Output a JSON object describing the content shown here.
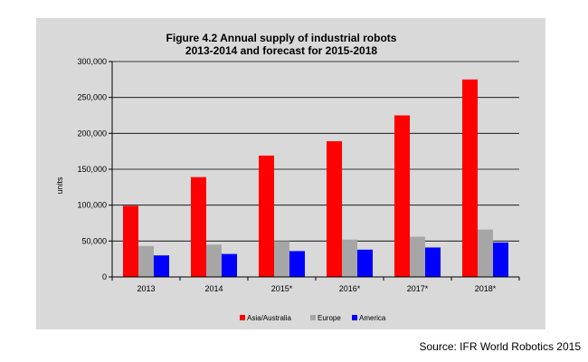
{
  "source_note": "Source: IFR World Robotics 2015",
  "chart_data": {
    "type": "bar",
    "title": [
      "Figure 4.2 Annual supply of industrial robots",
      "2013-2014 and forecast for 2015-2018"
    ],
    "xlabel": "",
    "ylabel": "units",
    "ylim": [
      0,
      300000
    ],
    "yticks": [
      0,
      50000,
      100000,
      150000,
      200000,
      250000,
      300000
    ],
    "ytick_labels": [
      "0",
      "50,000",
      "100,000",
      "150,000",
      "200,000",
      "250,000",
      "300,000"
    ],
    "grid": true,
    "legend_position": "bottom",
    "categories": [
      "2013",
      "2014",
      "2015*",
      "2016*",
      "2017*",
      "2018*"
    ],
    "series": [
      {
        "name": "Asia/Australia",
        "color": "#ff0000",
        "values": [
          99000,
          139000,
          169000,
          189000,
          225000,
          275000
        ]
      },
      {
        "name": "Europe",
        "color": "#a6a6a6",
        "values": [
          43000,
          45000,
          50000,
          52000,
          56000,
          66000
        ]
      },
      {
        "name": "America",
        "color": "#0000ff",
        "values": [
          30000,
          32000,
          36000,
          38000,
          41000,
          48000
        ]
      }
    ]
  }
}
